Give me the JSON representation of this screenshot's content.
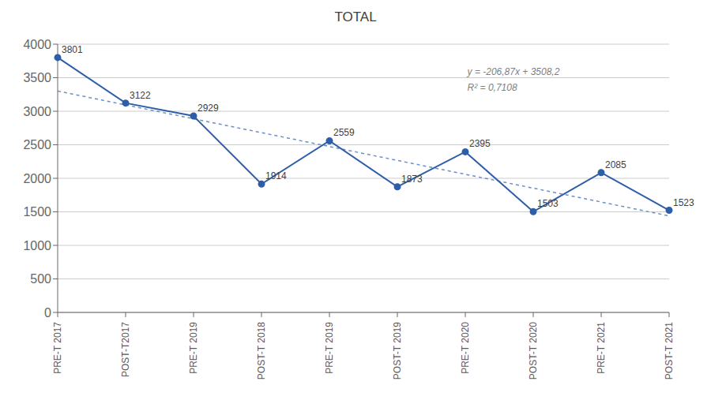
{
  "chart_data": {
    "type": "line",
    "title": "TOTAL",
    "categories": [
      "PRE-T 2017",
      "POST-T2017",
      "PRE-T 2019",
      "POST-T 2018",
      "PRE-T 2019",
      "POST-T 2019",
      "PRE-T 2020",
      "POST-T 2020",
      "PRE-T 2021",
      "POST-T 2021"
    ],
    "values": [
      3801,
      3122,
      2929,
      1914,
      2559,
      1873,
      2395,
      1503,
      2085,
      1523
    ],
    "color": "#2E5EA8",
    "marker": "circle",
    "data_labels": true,
    "trend": {
      "values": [
        3301.33,
        3094.46,
        2887.59,
        2680.72,
        2473.85,
        2266.98,
        2060.11,
        1853.24,
        1646.37,
        1439.5
      ],
      "color": "#6A8FC8",
      "line_style": "dashed"
    },
    "annotations": [
      "y = -206,87x + 3508,2",
      "R² = 0,7108"
    ],
    "ylim": [
      0,
      4000
    ],
    "yticks": [
      0,
      500,
      1000,
      1500,
      2000,
      2500,
      3000,
      3500,
      4000
    ],
    "grid": true
  }
}
